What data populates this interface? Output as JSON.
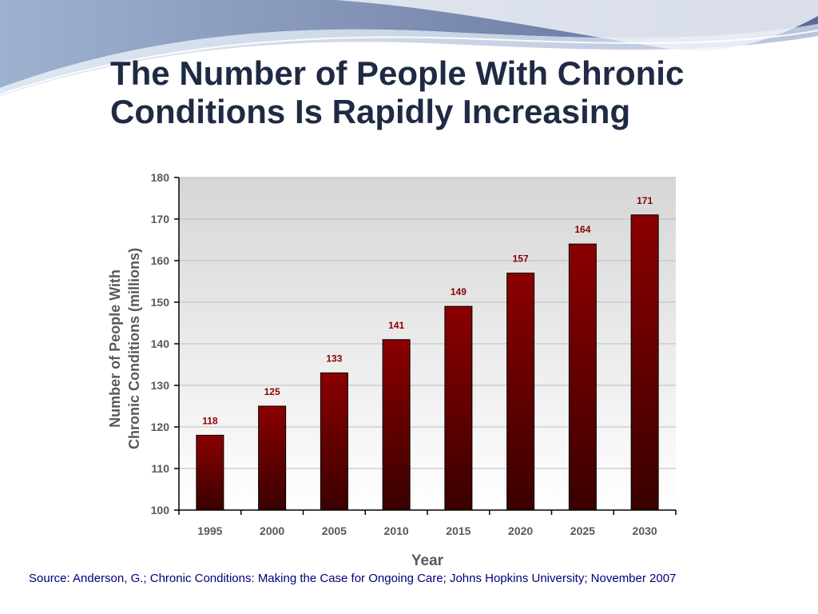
{
  "slide": {
    "title_lines": [
      "The Number of People With Chronic",
      "Conditions Is Rapidly Increasing"
    ],
    "source": "Source: Anderson, G.; Chronic Conditions: Making the Case for Ongoing Care; Johns Hopkins University; November 2007"
  },
  "colors": {
    "bar_top": "#8b0000",
    "bar_bottom": "#3a0000",
    "data_label": "#8b0000",
    "plot_background_top": "#d6d6d6",
    "plot_background_bottom": "#ffffff",
    "axis_text": "#595959",
    "title_text": "#1f2a44",
    "source_text": "#00007a"
  },
  "chart_data": {
    "type": "bar",
    "categories": [
      "1995",
      "2000",
      "2005",
      "2010",
      "2015",
      "2020",
      "2025",
      "2030"
    ],
    "values": [
      118,
      125,
      133,
      141,
      149,
      157,
      164,
      171
    ],
    "xlabel": "Year",
    "ylabel_lines": [
      "Number of People With",
      "Chronic Conditions (millions)"
    ],
    "ylim": [
      100,
      180
    ],
    "yticks": [
      100,
      110,
      120,
      130,
      140,
      150,
      160,
      170,
      180
    ],
    "grid": true,
    "legend": "none",
    "data_labels": true
  }
}
